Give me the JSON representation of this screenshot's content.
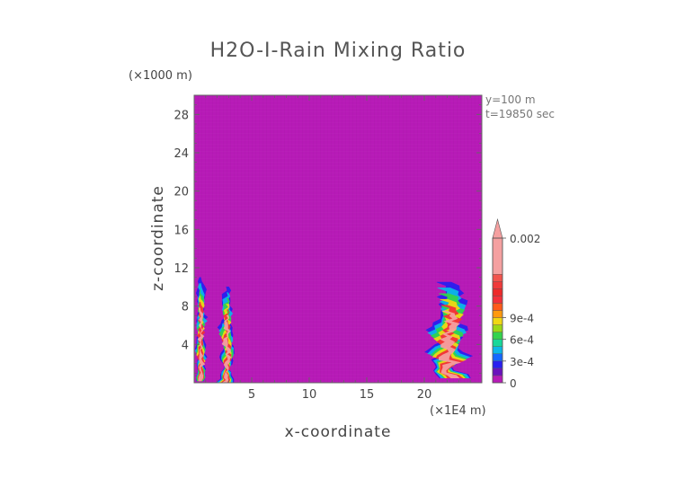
{
  "chart_data": {
    "type": "heatmap",
    "title": "H2O-I-Rain Mixing Ratio",
    "xlabel": "x-coordinate",
    "ylabel": "z-coordinate",
    "x_unit": "(×1E4 m)",
    "y_unit": "(×1000 m)",
    "annotations": [
      "y=100 m",
      "t=19850 sec"
    ],
    "xlim": [
      0,
      25
    ],
    "ylim": [
      0,
      30
    ],
    "x_ticks": [
      "5",
      "10",
      "15",
      "20"
    ],
    "y_ticks": [
      "4",
      "8",
      "12",
      "16",
      "20",
      "24",
      "28"
    ],
    "x_tick_values": [
      5,
      10,
      15,
      20
    ],
    "y_tick_values": [
      4,
      8,
      12,
      16,
      20,
      24,
      28
    ],
    "background_value": 0,
    "colorbar": {
      "min": 0,
      "max": 0.002,
      "levels": [
        0,
        0.0001,
        0.0002,
        0.0003,
        0.0004,
        0.0005,
        0.0006,
        0.0007,
        0.0008,
        0.0009,
        0.001,
        0.0011,
        0.0012,
        0.0013,
        0.0014,
        0.0015,
        0.002
      ],
      "colors": [
        "#b71ab7",
        "#6a12bd",
        "#2a1ff0",
        "#1568ff",
        "#0cb7e8",
        "#17d89a",
        "#33d34d",
        "#9bd817",
        "#f0d814",
        "#ff9a0e",
        "#ff5a1a",
        "#f3303a",
        "#ee2a2a",
        "#f03a3a",
        "#f2544d",
        "#f5a0a0"
      ],
      "tick_labels": [
        "0",
        "3e-4",
        "6e-4",
        "9e-4",
        "0.002"
      ],
      "tick_values": [
        0,
        0.0003,
        0.0006,
        0.0009,
        0.002
      ]
    },
    "features": [
      {
        "region": "left-edge shaft",
        "x_range": [
          0,
          1.2
        ],
        "z_range": [
          0.2,
          11
        ],
        "peak": 0.002
      },
      {
        "region": "left secondary shaft",
        "x_range": [
          2.0,
          3.7
        ],
        "z_range": [
          0,
          10
        ],
        "peak": 0.002
      },
      {
        "region": "right cell",
        "x_range": [
          20.0,
          24.5
        ],
        "z_range": [
          0.5,
          10.5
        ],
        "peak": 0.002
      }
    ]
  }
}
